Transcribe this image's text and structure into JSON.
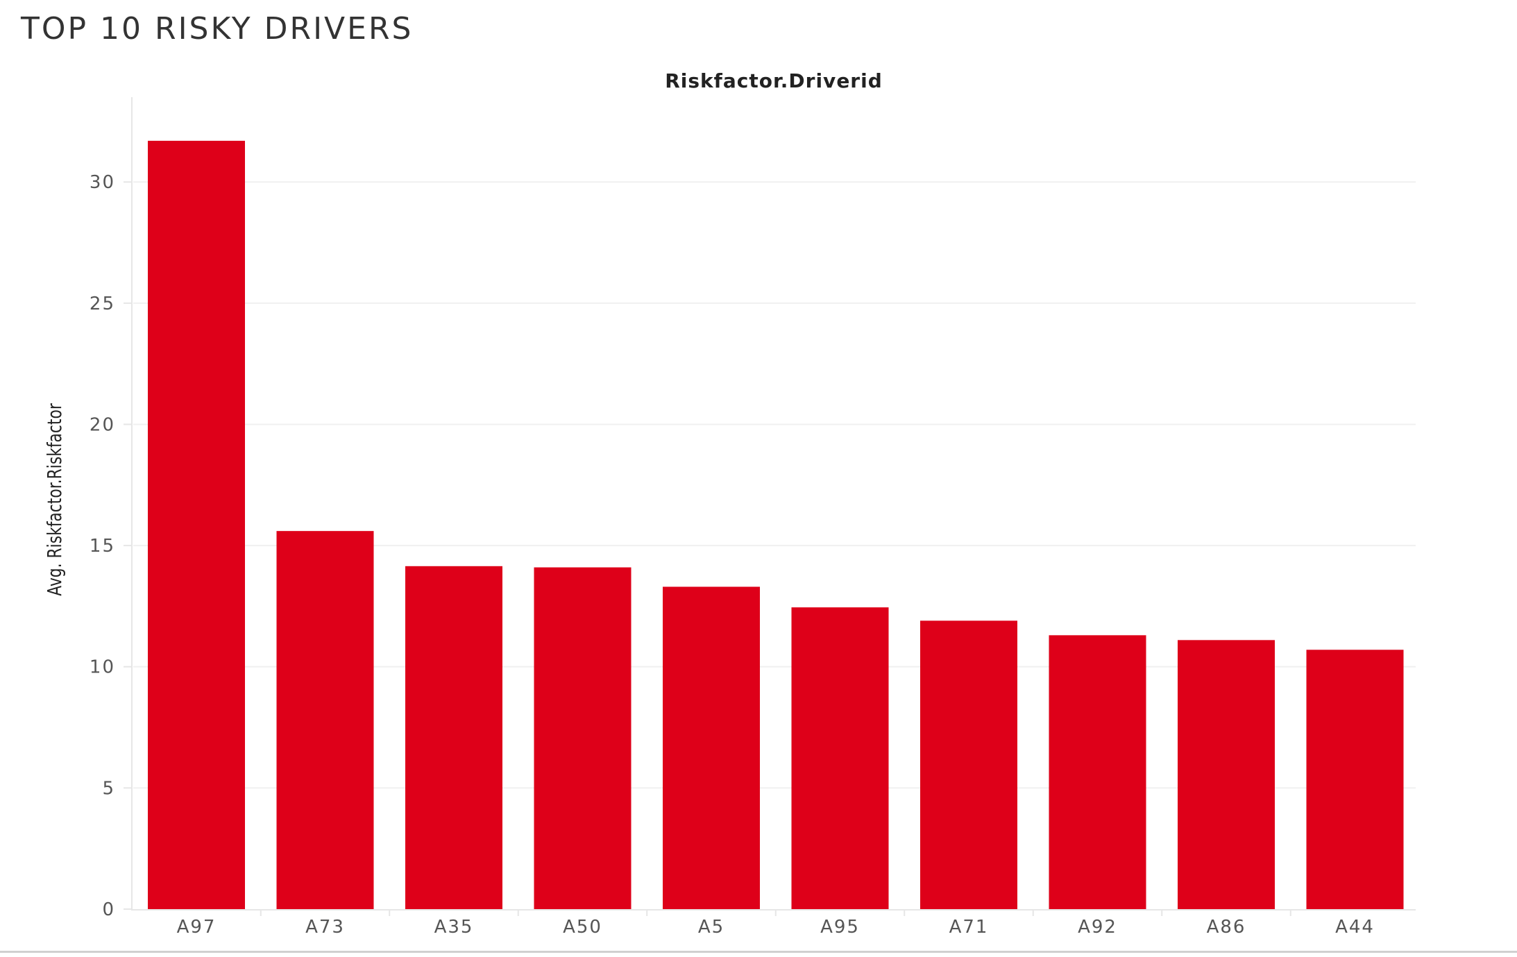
{
  "dashboard": {
    "title": "TOP 10 RISKY DRIVERS"
  },
  "colors": {
    "bar": "#de0019",
    "gridline": "#f0f0f0",
    "axis": "#e6e6e6"
  },
  "chart_data": {
    "type": "bar",
    "title": "",
    "column_header": "Riskfactor.Driverid",
    "xlabel": "",
    "ylabel": "Avg. Riskfactor.Riskfactor",
    "categories": [
      "A97",
      "A73",
      "A35",
      "A50",
      "A5",
      "A95",
      "A71",
      "A92",
      "A86",
      "A44"
    ],
    "values": [
      31.7,
      15.6,
      14.15,
      14.1,
      13.3,
      12.45,
      11.9,
      11.3,
      11.1,
      10.7
    ],
    "ylim": [
      0,
      33.5
    ],
    "yticks": [
      0,
      5,
      10,
      15,
      20,
      25,
      30
    ],
    "grid": true,
    "legend": "none"
  }
}
